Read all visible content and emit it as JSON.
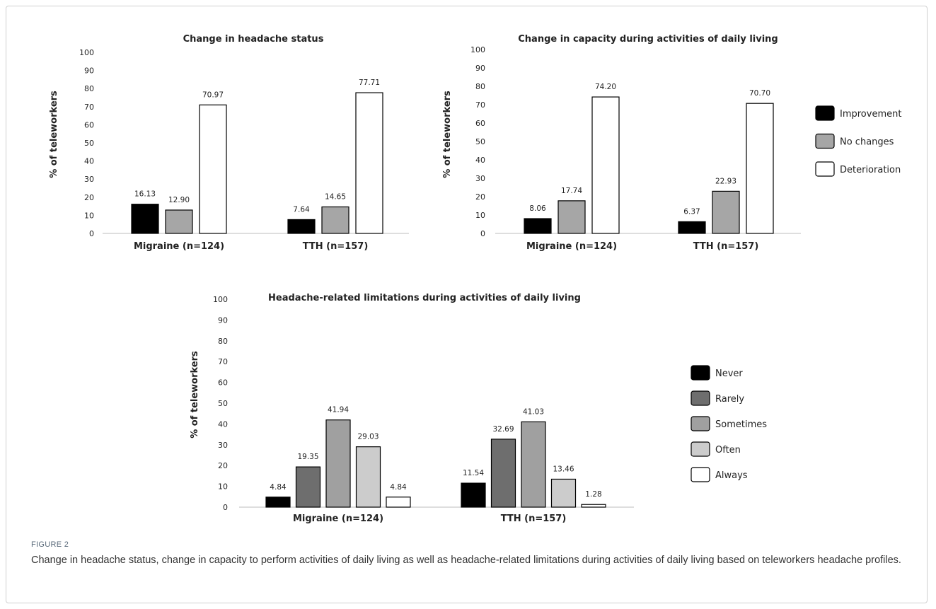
{
  "figure": {
    "label": "FIGURE 2",
    "caption": "Change in headache status, change in capacity to perform activities of daily living as well as headache-related limitations during activities of daily living based on teleworkers headache profiles."
  },
  "chart_data": [
    {
      "type": "bar",
      "title": "Change in headache status",
      "ylabel": "% of teleworkers",
      "xlabel": "",
      "ylim": [
        0,
        100
      ],
      "yticks": [
        "0",
        "10",
        "20",
        "30",
        "40",
        "50",
        "60",
        "70",
        "80",
        "90",
        "100"
      ],
      "categories": [
        "Migraine (n=124)",
        "TTH (n=157)"
      ],
      "series": [
        {
          "name": "Improvement",
          "values": [
            16.13,
            7.64
          ],
          "labels": [
            "16.13",
            "7.64"
          ],
          "color": "#000000"
        },
        {
          "name": "No changes",
          "values": [
            12.9,
            14.65
          ],
          "labels": [
            "12.90",
            "14.65"
          ],
          "color": "#a6a6a6"
        },
        {
          "name": "Deterioration",
          "values": [
            70.97,
            77.71
          ],
          "labels": [
            "70.97",
            "77.71"
          ],
          "color": "#ffffff"
        }
      ],
      "legend": "none",
      "grid": false
    },
    {
      "type": "bar",
      "title": "Change in capacity during activities of daily living",
      "ylabel": "% of teleworkers",
      "xlabel": "",
      "ylim": [
        0,
        100
      ],
      "yticks": [
        "0",
        "10",
        "20",
        "30",
        "40",
        "50",
        "60",
        "70",
        "80",
        "90",
        "100"
      ],
      "categories": [
        "Migraine (n=124)",
        "TTH (n=157)"
      ],
      "series": [
        {
          "name": "Improvement",
          "values": [
            8.06,
            6.37
          ],
          "labels": [
            "8.06",
            "6.37"
          ],
          "color": "#000000"
        },
        {
          "name": "No changes",
          "values": [
            17.74,
            22.93
          ],
          "labels": [
            "17.74",
            "22.93"
          ],
          "color": "#a6a6a6"
        },
        {
          "name": "Deterioration",
          "values": [
            74.2,
            70.7
          ],
          "labels": [
            "74.20",
            "70.70"
          ],
          "color": "#ffffff"
        }
      ],
      "legend": "right",
      "grid": false
    },
    {
      "type": "bar",
      "title": "Headache-related limitations during activities of daily living",
      "ylabel": "% of teleworkers",
      "xlabel": "",
      "ylim": [
        0,
        100
      ],
      "yticks": [
        "0",
        "10",
        "20",
        "30",
        "40",
        "50",
        "60",
        "70",
        "80",
        "90",
        "100"
      ],
      "categories": [
        "Migraine (n=124)",
        "TTH (n=157)"
      ],
      "series": [
        {
          "name": "Never",
          "values": [
            4.84,
            11.54
          ],
          "labels": [
            "4.84",
            "11.54"
          ],
          "color": "#000000"
        },
        {
          "name": "Rarely",
          "values": [
            19.35,
            32.69
          ],
          "labels": [
            "19.35",
            "32.69"
          ],
          "color": "#6e6e6e"
        },
        {
          "name": "Sometimes",
          "values": [
            41.94,
            41.03
          ],
          "labels": [
            "41.94",
            "41.03"
          ],
          "color": "#a0a0a0"
        },
        {
          "name": "Often",
          "values": [
            29.03,
            13.46
          ],
          "labels": [
            "29.03",
            "13.46"
          ],
          "color": "#cccccc"
        },
        {
          "name": "Always",
          "values": [
            4.84,
            1.28
          ],
          "labels": [
            "4.84",
            "1.28"
          ],
          "color": "#ffffff"
        }
      ],
      "legend": "right",
      "grid": false
    }
  ]
}
